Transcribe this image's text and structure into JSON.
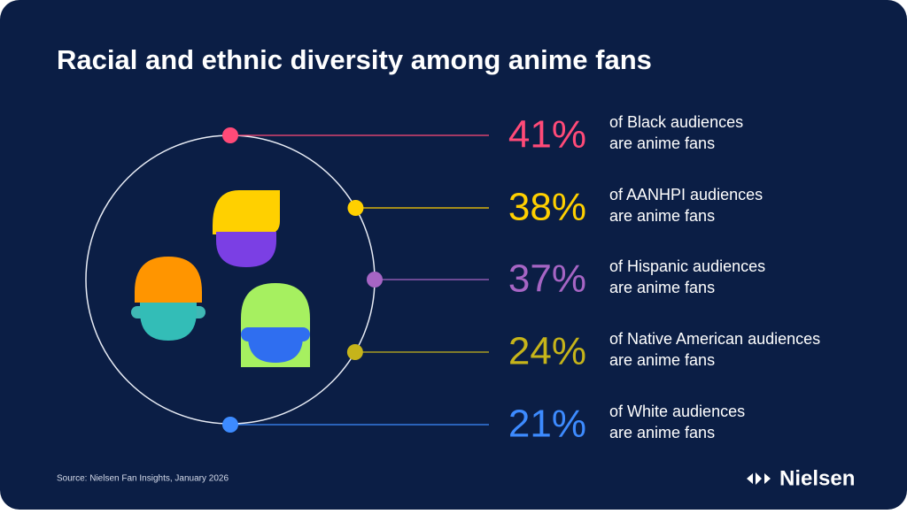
{
  "header": {
    "title": "Racial and ethnic diversity among anime fans"
  },
  "stats": [
    {
      "value": "41%",
      "line1": "of Black audiences",
      "line2": "are anime fans",
      "color": "#ff4a78"
    },
    {
      "value": "38%",
      "line1": "of AANHPI audiences",
      "line2": "are anime fans",
      "color": "#ffd000"
    },
    {
      "value": "37%",
      "line1": "of Hispanic audiences",
      "line2": "are anime fans",
      "color": "#a665c4"
    },
    {
      "value": "24%",
      "line1": "of Native American audiences",
      "line2": "are anime fans",
      "color": "#c6b41a"
    },
    {
      "value": "21%",
      "line1": "of White audiences",
      "line2": "are anime fans",
      "color": "#3d8bff"
    }
  ],
  "footer": {
    "source": "Source: Nielsen Fan Insights, January 2026",
    "brand": "Nielsen"
  }
}
